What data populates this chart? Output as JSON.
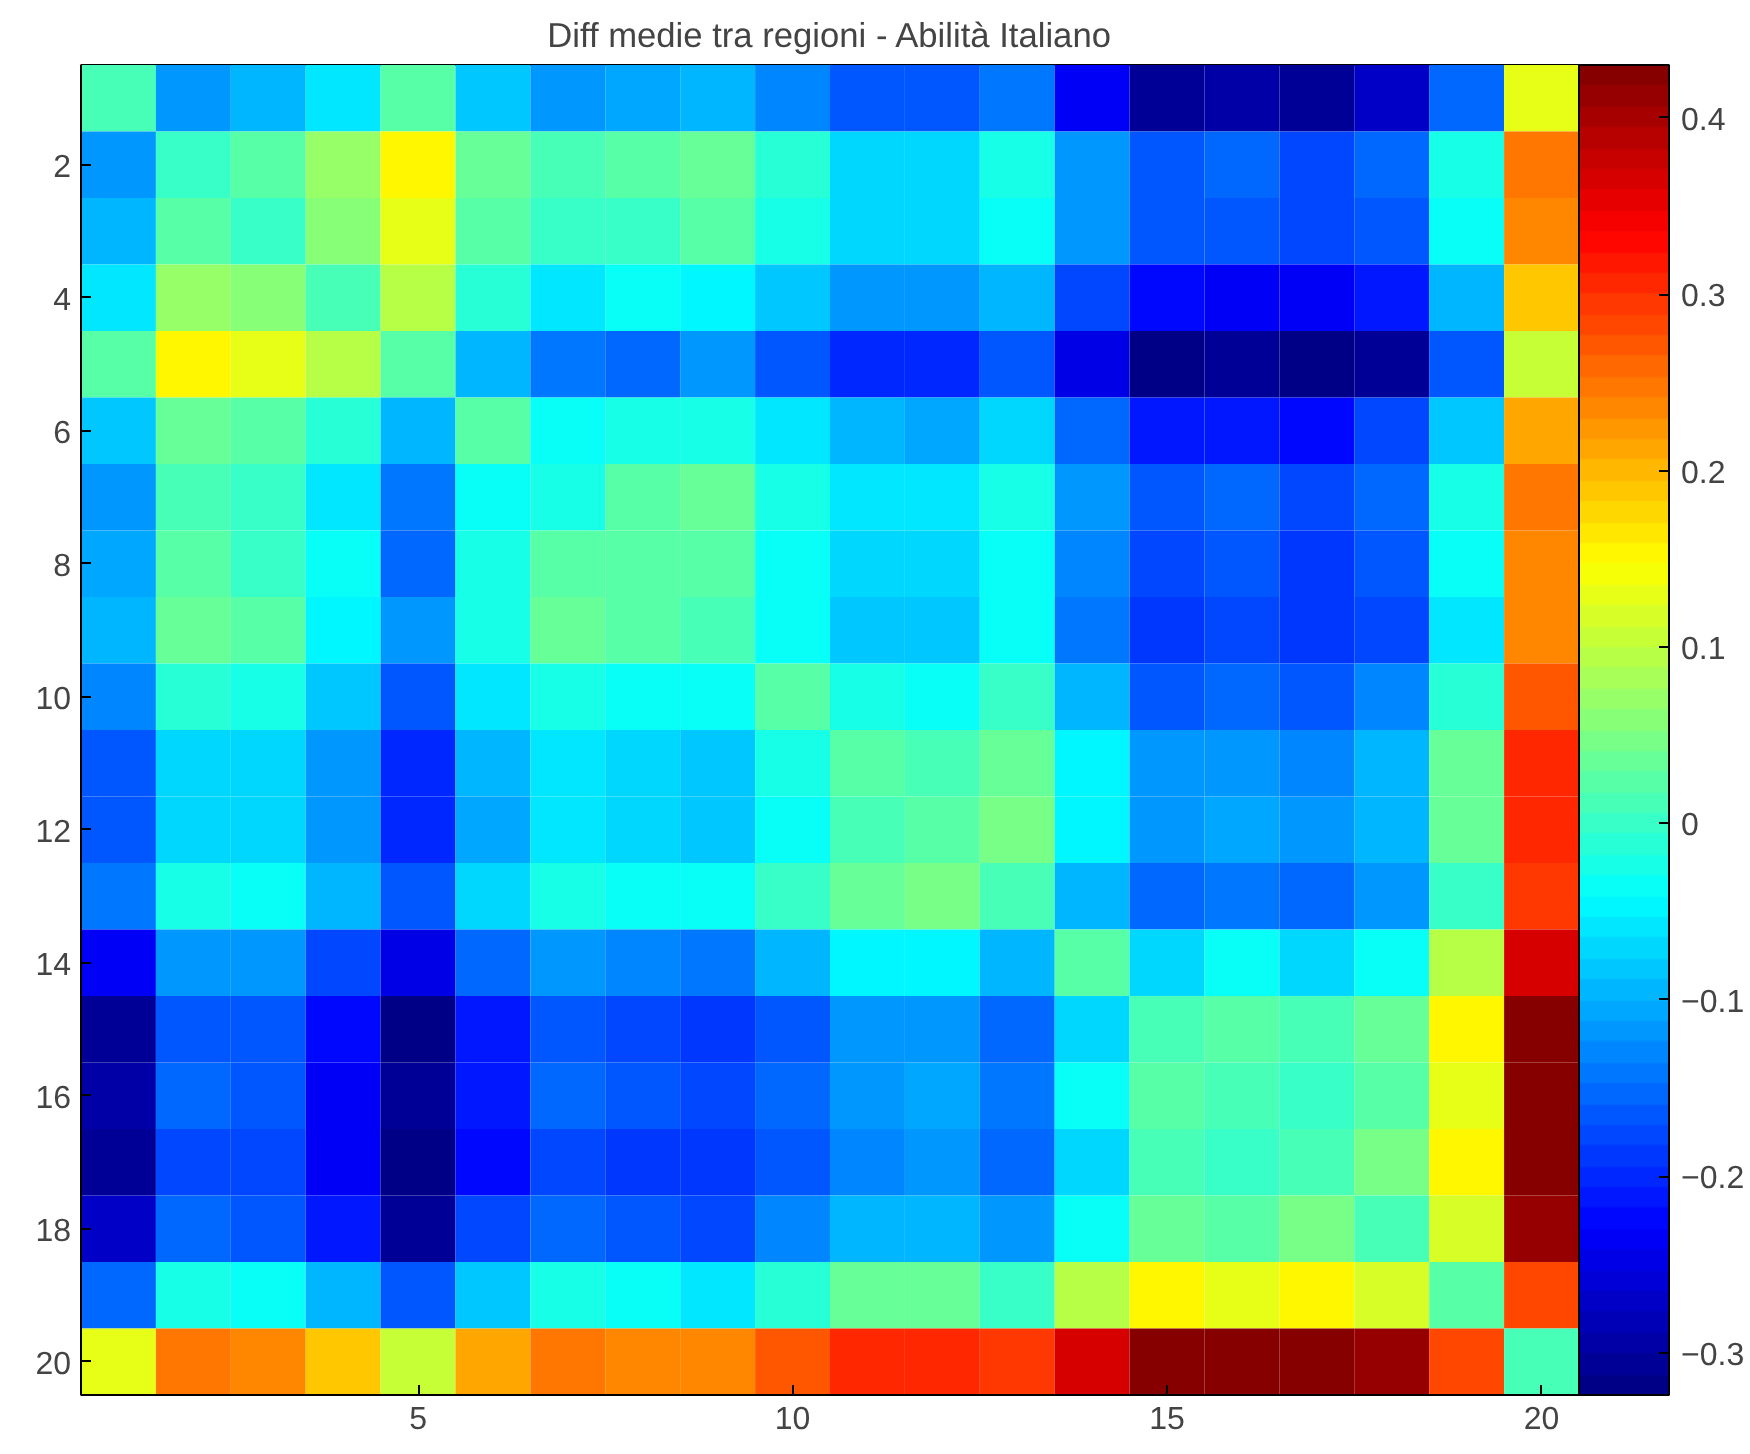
{
  "chart_data": {
    "type": "heatmap",
    "title": "Diff medie tra regioni - Abilità Italiano",
    "categories": [
      null,
      null,
      null,
      null,
      "5",
      null,
      null,
      null,
      null,
      "10",
      null,
      null,
      null,
      null,
      "15",
      null,
      null,
      null,
      null,
      "20"
    ],
    "y_categories": [
      null,
      "2",
      null,
      "4",
      null,
      "6",
      null,
      "8",
      null,
      "10",
      null,
      "12",
      null,
      "14",
      null,
      "16",
      null,
      "18",
      null,
      "20"
    ],
    "cells": [
      [
        0.01,
        -0.12,
        -0.1,
        -0.06,
        0.02,
        -0.08,
        -0.12,
        -0.11,
        -0.1,
        -0.13,
        -0.16,
        -0.17,
        -0.14,
        -0.23,
        -0.31,
        -0.3,
        -0.31,
        -0.27,
        -0.15,
        0.13
      ],
      [
        -0.12,
        0.0,
        0.02,
        0.07,
        0.15,
        0.04,
        0.01,
        0.02,
        0.04,
        -0.01,
        -0.07,
        -0.07,
        -0.02,
        -0.12,
        -0.17,
        -0.15,
        -0.18,
        -0.15,
        -0.02,
        0.25
      ],
      [
        -0.1,
        0.02,
        0.0,
        0.06,
        0.13,
        0.02,
        0.0,
        0.0,
        0.02,
        -0.02,
        -0.07,
        -0.07,
        -0.04,
        -0.12,
        -0.17,
        -0.16,
        -0.18,
        -0.16,
        -0.04,
        0.24
      ],
      [
        -0.06,
        0.07,
        0.06,
        0.01,
        0.09,
        -0.01,
        -0.06,
        -0.04,
        -0.05,
        -0.08,
        -0.12,
        -0.12,
        -0.1,
        -0.18,
        -0.22,
        -0.23,
        -0.24,
        -0.21,
        -0.09,
        0.19
      ],
      [
        0.02,
        0.15,
        0.13,
        0.09,
        0.02,
        -0.1,
        -0.14,
        -0.15,
        -0.12,
        -0.16,
        -0.2,
        -0.2,
        -0.16,
        -0.25,
        -0.32,
        -0.31,
        -0.32,
        -0.31,
        -0.17,
        0.11
      ],
      [
        -0.08,
        0.04,
        0.02,
        -0.01,
        -0.1,
        0.02,
        -0.03,
        -0.02,
        -0.02,
        -0.06,
        -0.1,
        -0.11,
        -0.07,
        -0.15,
        -0.21,
        -0.21,
        -0.22,
        -0.18,
        -0.08,
        0.21
      ],
      [
        -0.12,
        0.01,
        0.0,
        -0.06,
        -0.14,
        -0.03,
        -0.02,
        0.02,
        0.03,
        -0.02,
        -0.06,
        -0.06,
        -0.02,
        -0.12,
        -0.17,
        -0.15,
        -0.18,
        -0.15,
        -0.02,
        0.25
      ],
      [
        -0.11,
        0.02,
        0.0,
        -0.04,
        -0.15,
        -0.02,
        0.02,
        0.02,
        0.02,
        -0.03,
        -0.07,
        -0.07,
        -0.04,
        -0.13,
        -0.18,
        -0.17,
        -0.19,
        -0.16,
        -0.04,
        0.24
      ],
      [
        -0.1,
        0.04,
        0.02,
        -0.05,
        -0.12,
        -0.02,
        0.03,
        0.02,
        0.01,
        -0.03,
        -0.08,
        -0.08,
        -0.04,
        -0.14,
        -0.19,
        -0.18,
        -0.19,
        -0.18,
        -0.06,
        0.23
      ],
      [
        -0.13,
        -0.01,
        -0.02,
        -0.08,
        -0.16,
        -0.06,
        -0.02,
        -0.03,
        -0.03,
        0.02,
        -0.02,
        -0.04,
        0.0,
        -0.09,
        -0.16,
        -0.15,
        -0.16,
        -0.13,
        -0.01,
        0.27
      ],
      [
        -0.16,
        -0.07,
        -0.07,
        -0.12,
        -0.2,
        -0.1,
        -0.06,
        -0.07,
        -0.08,
        -0.02,
        0.02,
        0.01,
        0.03,
        -0.05,
        -0.12,
        -0.12,
        -0.13,
        -0.09,
        0.03,
        0.31
      ],
      [
        -0.17,
        -0.07,
        -0.07,
        -0.12,
        -0.2,
        -0.11,
        -0.06,
        -0.07,
        -0.08,
        -0.04,
        0.01,
        0.02,
        0.05,
        -0.05,
        -0.12,
        -0.11,
        -0.12,
        -0.1,
        0.04,
        0.31
      ],
      [
        -0.14,
        -0.02,
        -0.04,
        -0.1,
        -0.16,
        -0.07,
        -0.02,
        -0.04,
        -0.04,
        0.0,
        0.03,
        0.05,
        0.01,
        -0.09,
        -0.15,
        -0.14,
        -0.15,
        -0.12,
        0.0,
        0.29
      ],
      [
        -0.23,
        -0.12,
        -0.12,
        -0.18,
        -0.25,
        -0.15,
        -0.12,
        -0.13,
        -0.14,
        -0.09,
        -0.05,
        -0.05,
        -0.09,
        0.02,
        -0.07,
        -0.04,
        -0.07,
        -0.03,
        0.09,
        0.37
      ],
      [
        -0.31,
        -0.17,
        -0.17,
        -0.22,
        -0.32,
        -0.21,
        -0.17,
        -0.18,
        -0.19,
        -0.16,
        -0.12,
        -0.12,
        -0.15,
        -0.07,
        0.01,
        0.02,
        0.01,
        0.04,
        0.15,
        0.43
      ],
      [
        -0.3,
        -0.15,
        -0.16,
        -0.23,
        -0.31,
        -0.21,
        -0.15,
        -0.17,
        -0.18,
        -0.15,
        -0.12,
        -0.11,
        -0.14,
        -0.04,
        0.02,
        0.01,
        0.0,
        0.02,
        0.13,
        0.42
      ],
      [
        -0.31,
        -0.18,
        -0.18,
        -0.24,
        -0.32,
        -0.22,
        -0.18,
        -0.19,
        -0.19,
        -0.16,
        -0.13,
        -0.12,
        -0.15,
        -0.07,
        0.01,
        0.0,
        0.01,
        0.05,
        0.15,
        0.43
      ],
      [
        -0.27,
        -0.15,
        -0.16,
        -0.21,
        -0.31,
        -0.18,
        -0.15,
        -0.16,
        -0.18,
        -0.13,
        -0.09,
        -0.1,
        -0.12,
        -0.03,
        0.04,
        0.02,
        0.05,
        0.01,
        0.12,
        0.41
      ],
      [
        -0.15,
        -0.02,
        -0.04,
        -0.09,
        -0.17,
        -0.08,
        -0.02,
        -0.04,
        -0.06,
        -0.01,
        0.03,
        0.04,
        0.0,
        0.09,
        0.15,
        0.13,
        0.15,
        0.12,
        0.02,
        0.28
      ],
      [
        0.13,
        0.25,
        0.24,
        0.19,
        0.11,
        0.21,
        0.25,
        0.24,
        0.23,
        0.27,
        0.31,
        0.31,
        0.29,
        0.37,
        0.43,
        0.42,
        0.43,
        0.41,
        0.28,
        0.01
      ]
    ],
    "clim": [
      -0.324,
      0.43
    ],
    "cticks": [
      -0.3,
      -0.2,
      -0.1,
      0,
      0.1,
      0.2,
      0.3,
      0.4
    ],
    "grid": false
  }
}
